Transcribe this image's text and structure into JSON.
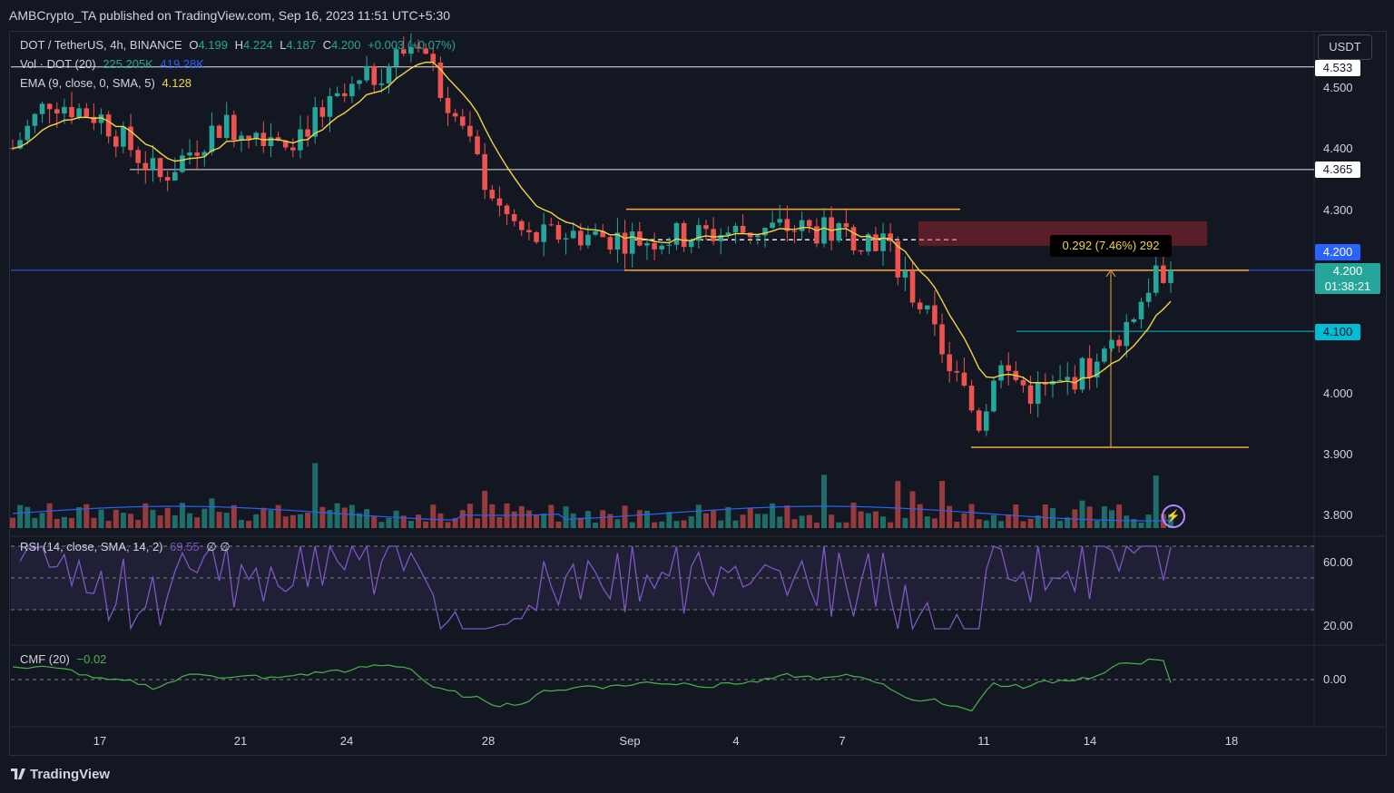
{
  "header": {
    "publisher": "AMBCrypto_TA published on TradingView.com, Sep 16, 2023 11:51 UTC+5:30"
  },
  "legend": {
    "symbol": "DOT / TetherUS, 4h, BINANCE",
    "open_label": "O",
    "open": "4.199",
    "high_label": "H",
    "high": "4.224",
    "low_label": "L",
    "low": "4.187",
    "close_label": "C",
    "close": "4.200",
    "change": "+0.003 (+0.07%)",
    "vol_label": "Vol · DOT (20)",
    "vol_value": "225.205K",
    "vol_ma": "419.28K",
    "ema_label": "EMA (9, close, 0, SMA, 5)",
    "ema_value": "4.128",
    "rsi_label": "RSI (14, close, SMA, 14, 2)",
    "rsi_value": "69.55",
    "rsi_extra": "∅ ∅",
    "cmf_label": "CMF (20)",
    "cmf_value": "−0.02"
  },
  "currency_button": "USDT",
  "price_axis": {
    "ticks": [
      "4.500",
      "4.400",
      "4.300",
      "4.000",
      "3.900",
      "3.800"
    ],
    "level_4533": "4.533",
    "level_4365": "4.365",
    "level_4200_line": "4.200",
    "last_price": "4.200",
    "countdown": "01:38:21",
    "level_4100": "4.100"
  },
  "rsi_axis": {
    "ticks": [
      "60.00",
      "20.00"
    ]
  },
  "cmf_axis": {
    "ticks": [
      "0.00"
    ]
  },
  "x_axis": {
    "ticks": [
      "17",
      "21",
      "24",
      "28",
      "Sep",
      "4",
      "7",
      "11",
      "14",
      "18"
    ]
  },
  "measure_label": "0.292 (7.46%) 292",
  "footer": {
    "brand": "TradingView"
  },
  "colors": {
    "up": "#26a69a",
    "down": "#ef5350",
    "ema": "#f5d442",
    "rsi": "#7e57c2",
    "cmf": "#4caf50",
    "range": "#f7a93b",
    "blue_line": "#2962ff",
    "cyan": "#00bcd4"
  },
  "chart_data": {
    "type": "candlestick",
    "title": "DOT / TetherUS, 4h, BINANCE",
    "x_ticks": [
      "17",
      "21",
      "24",
      "28",
      "Sep",
      "4",
      "7",
      "11",
      "14",
      "18"
    ],
    "price_ylim": [
      3.78,
      4.58
    ],
    "horizontal_levels": [
      4.533,
      4.365,
      4.2,
      4.1
    ],
    "range_box": {
      "top": 4.3,
      "bottom": 4.2
    },
    "supply_zone": {
      "top": 4.28,
      "bottom": 4.24
    },
    "support_line": 3.91,
    "measure": {
      "from": 3.91,
      "to": 4.2,
      "label": "0.292 (7.46%) 292"
    },
    "price_path_keypoints": [
      [
        0,
        4.4
      ],
      [
        5,
        4.48
      ],
      [
        12,
        4.45
      ],
      [
        20,
        4.35
      ],
      [
        28,
        4.44
      ],
      [
        38,
        4.42
      ],
      [
        47,
        4.5
      ],
      [
        55,
        4.58
      ],
      [
        60,
        4.45
      ],
      [
        66,
        4.3
      ],
      [
        70,
        4.25
      ],
      [
        75,
        4.26
      ],
      [
        85,
        4.25
      ],
      [
        95,
        4.26
      ],
      [
        105,
        4.27
      ],
      [
        112,
        4.26
      ],
      [
        118,
        4.25
      ],
      [
        124,
        4.12
      ],
      [
        128,
        4.02
      ],
      [
        131,
        3.95
      ],
      [
        134,
        4.04
      ],
      [
        138,
        4.0
      ],
      [
        142,
        4.01
      ],
      [
        148,
        4.06
      ],
      [
        152,
        4.13
      ],
      [
        155,
        4.2
      ]
    ],
    "rsi_range": [
      10,
      70
    ],
    "rsi_bands": [
      30,
      50,
      70
    ],
    "rsi_last": 69.55,
    "cmf_last": -0.02
  }
}
